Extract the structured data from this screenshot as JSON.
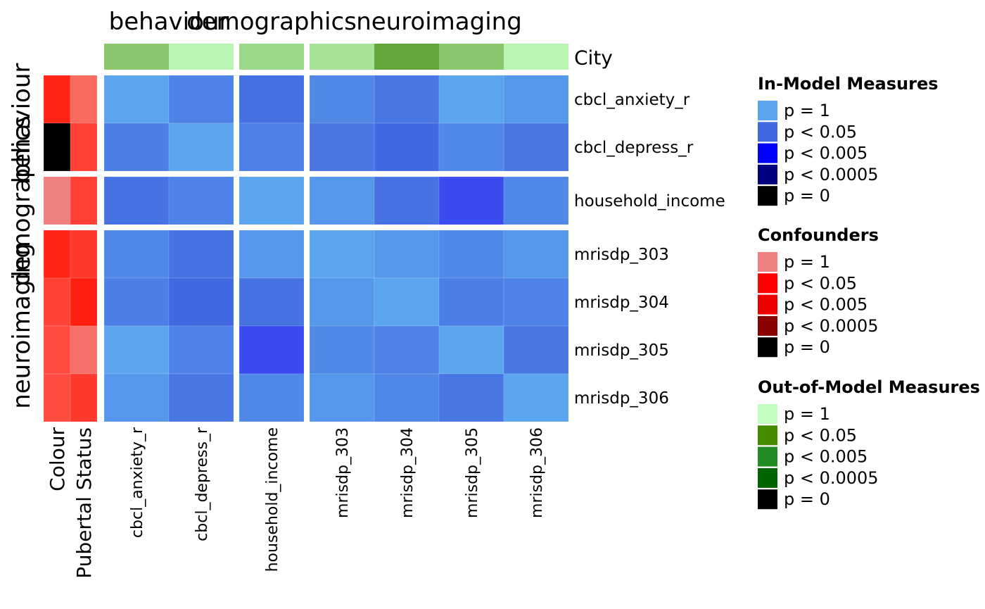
{
  "chart_data": {
    "type": "heatmap",
    "column_groups": [
      {
        "label": "behaviour",
        "columns": [
          "cbcl_anxiety_r",
          "cbcl_depress_r"
        ]
      },
      {
        "label": "demographics",
        "columns": [
          "household_income"
        ]
      },
      {
        "label": "neuroimaging",
        "columns": [
          "mrisdp_303",
          "mrisdp_304",
          "mrisdp_305",
          "mrisdp_306"
        ]
      }
    ],
    "row_groups": [
      {
        "label": "behaviour",
        "rows": [
          "cbcl_anxiety_r",
          "cbcl_depress_r"
        ]
      },
      {
        "label": "demographics",
        "rows": [
          "household_income"
        ]
      },
      {
        "label": "neuroimaging",
        "rows": [
          "mrisdp_303",
          "mrisdp_304",
          "mrisdp_305",
          "mrisdp_306"
        ]
      }
    ],
    "top_annotation": {
      "name": "City",
      "colors": [
        "#88c76b",
        "#b8f5b0",
        "#9ad98a",
        "#a6e396",
        "#63a63a",
        "#88c76b",
        "#b8f5b0"
      ]
    },
    "left_annotations": [
      {
        "name": "Colour",
        "colors": [
          "#ff2414",
          "#000000",
          "#f08080",
          "#ff2414",
          "#ff4236",
          "#ff4b40",
          "#ff4b40"
        ]
      },
      {
        "name": "Pubertal Status",
        "colors": [
          "#fa6a5e",
          "#ff4034",
          "#ff4034",
          "#ff3a2c",
          "#ff1f10",
          "#f57068",
          "#ff3a2c"
        ]
      }
    ],
    "cells": [
      [
        "#5aa5ee",
        "#4d82e6",
        "#4570e2",
        "#5088e7",
        "#4877e3",
        "#5aa5ee",
        "#5597ea"
      ],
      [
        "#4b7fe6",
        "#5aa5ee",
        "#4c80e6",
        "#4876e3",
        "#416ae2",
        "#5088e7",
        "#4876e3"
      ],
      [
        "#4672e2",
        "#4d82e6",
        "#5aa5ee",
        "#5597ea",
        "#4672e2",
        "#3a4bf0",
        "#5088e7"
      ],
      [
        "#5088e7",
        "#4672e2",
        "#5597ea",
        "#5aa5ee",
        "#5597ea",
        "#5088e7",
        "#5597ea"
      ],
      [
        "#4b7fe6",
        "#416ae2",
        "#4672e2",
        "#5597ea",
        "#5aa5ee",
        "#4b7fe6",
        "#4d82e6"
      ],
      [
        "#5aa5ee",
        "#4d82e6",
        "#3a4bf0",
        "#5088e7",
        "#4d82e6",
        "#5aa5ee",
        "#4876e3"
      ],
      [
        "#5597ea",
        "#4876e3",
        "#5088e7",
        "#5597ea",
        "#5088e7",
        "#4876e3",
        "#5aa5ee"
      ]
    ],
    "legends": [
      {
        "title": "In-Model Measures",
        "items": [
          {
            "label": "p = 1",
            "color": "#5aa5ee"
          },
          {
            "label": "p < 0.05",
            "color": "#416ae2"
          },
          {
            "label": "p < 0.005",
            "color": "#0000ff"
          },
          {
            "label": "p < 0.0005",
            "color": "#000080"
          },
          {
            "label": "p = 0",
            "color": "#000000"
          }
        ]
      },
      {
        "title": "Confounders",
        "items": [
          {
            "label": "p = 1",
            "color": "#f08080"
          },
          {
            "label": "p < 0.05",
            "color": "#ff0000"
          },
          {
            "label": "p < 0.005",
            "color": "#ee0000"
          },
          {
            "label": "p < 0.0005",
            "color": "#8b0000"
          },
          {
            "label": "p = 0",
            "color": "#000000"
          }
        ]
      },
      {
        "title": "Out-of-Model Measures",
        "items": [
          {
            "label": "p = 1",
            "color": "#c1ffc1"
          },
          {
            "label": "p < 0.05",
            "color": "#458b00"
          },
          {
            "label": "p < 0.005",
            "color": "#228b22"
          },
          {
            "label": "p < 0.0005",
            "color": "#006400"
          },
          {
            "label": "p = 0",
            "color": "#000000"
          }
        ]
      }
    ]
  }
}
